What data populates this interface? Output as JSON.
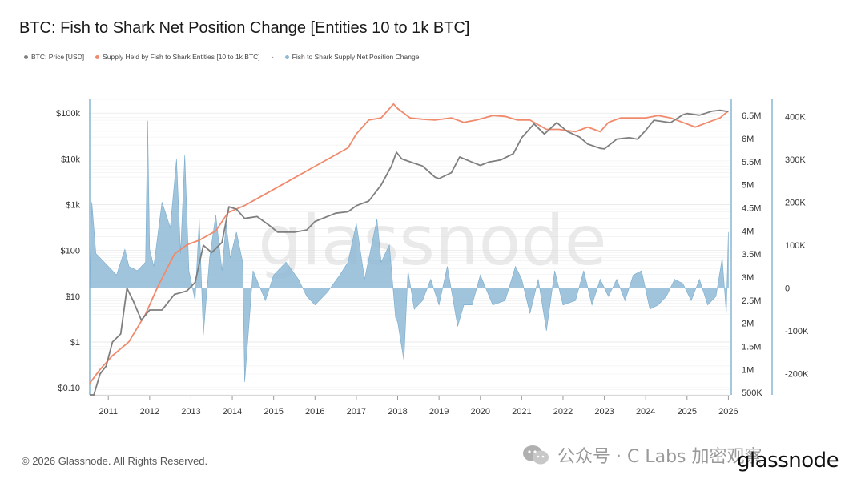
{
  "title": "BTC: Fish to Shark Net Position Change [Entities 10 to 1k BTC]",
  "legend": [
    {
      "label": "BTC: Price [USD]",
      "color": "#7f7f7f",
      "marker": "dot"
    },
    {
      "label": "Supply Held by Fish to Shark Entities [10 to 1k BTC]",
      "color": "#f08a6c",
      "marker": "dot"
    },
    {
      "label": "-",
      "color": "#666666",
      "marker": "none"
    },
    {
      "label": "Fish to Shark Supply Net Position Change",
      "color": "#8fbad6",
      "marker": "dot"
    }
  ],
  "footer": "© 2026 Glassnode. All Rights Reserved.",
  "watermark_text": "公众号 · C Labs 加密观察",
  "logo": "glassnode",
  "chart_data": {
    "type": "line",
    "x_ticks": [
      "2011",
      "2012",
      "2013",
      "2014",
      "2015",
      "2016",
      "2017",
      "2018",
      "2019",
      "2020",
      "2021",
      "2022",
      "2023",
      "2024",
      "2025",
      "2026"
    ],
    "x_range": [
      2010.55,
      2026.05
    ],
    "axes": {
      "left": {
        "scale": "log",
        "range": [
          0.07,
          200000
        ],
        "ticks": [
          {
            "v": 0.1,
            "label": "$0.10"
          },
          {
            "v": 1,
            "label": "$1"
          },
          {
            "v": 10,
            "label": "$10"
          },
          {
            "v": 100,
            "label": "$100"
          },
          {
            "v": 1000,
            "label": "$1k"
          },
          {
            "v": 10000,
            "label": "$10k"
          },
          {
            "v": 100000,
            "label": "$100k"
          }
        ]
      },
      "middle": {
        "scale": "linear",
        "range": [
          450000,
          6850000
        ],
        "ticks": [
          {
            "v": 500000,
            "label": "500K"
          },
          {
            "v": 1000000,
            "label": "1M"
          },
          {
            "v": 1500000,
            "label": "1.5M"
          },
          {
            "v": 2000000,
            "label": "2M"
          },
          {
            "v": 2500000,
            "label": "2.5M"
          },
          {
            "v": 3000000,
            "label": "3M"
          },
          {
            "v": 3500000,
            "label": "3.5M"
          },
          {
            "v": 4000000,
            "label": "4M"
          },
          {
            "v": 4500000,
            "label": "4.5M"
          },
          {
            "v": 5000000,
            "label": "5M"
          },
          {
            "v": 5500000,
            "label": "5.5M"
          },
          {
            "v": 6000000,
            "label": "6M"
          },
          {
            "v": 6500000,
            "label": "6.5M"
          }
        ]
      },
      "right": {
        "scale": "linear",
        "range": [
          -250000,
          440000
        ],
        "ticks": [
          {
            "v": -200000,
            "label": "-200K"
          },
          {
            "v": -100000,
            "label": "-100K"
          },
          {
            "v": 0,
            "label": "0"
          },
          {
            "v": 100000,
            "label": "100K"
          },
          {
            "v": 200000,
            "label": "200K"
          },
          {
            "v": 300000,
            "label": "300K"
          },
          {
            "v": 400000,
            "label": "400K"
          }
        ]
      }
    },
    "series": [
      {
        "name": "BTC: Price [USD]",
        "axis": "left",
        "color": "#7f7f7f",
        "x": [
          2010.55,
          2010.65,
          2010.8,
          2010.95,
          2011.1,
          2011.3,
          2011.45,
          2011.6,
          2011.8,
          2012.0,
          2012.3,
          2012.6,
          2012.9,
          2013.1,
          2013.3,
          2013.5,
          2013.75,
          2013.92,
          2014.1,
          2014.3,
          2014.6,
          2014.9,
          2015.1,
          2015.5,
          2015.8,
          2016.0,
          2016.5,
          2016.8,
          2017.0,
          2017.3,
          2017.6,
          2017.85,
          2017.97,
          2018.1,
          2018.4,
          2018.6,
          2018.9,
          2019.0,
          2019.3,
          2019.5,
          2019.8,
          2020.0,
          2020.2,
          2020.5,
          2020.8,
          2021.0,
          2021.3,
          2021.55,
          2021.85,
          2022.1,
          2022.4,
          2022.6,
          2022.9,
          2023.0,
          2023.3,
          2023.6,
          2023.8,
          2024.0,
          2024.2,
          2024.6,
          2024.9,
          2025.0,
          2025.3,
          2025.6,
          2025.8,
          2026.0
        ],
        "y": [
          0.07,
          0.07,
          0.2,
          0.3,
          1,
          1.5,
          15,
          8,
          3,
          5,
          5,
          11,
          13,
          20,
          130,
          90,
          150,
          900,
          800,
          500,
          550,
          350,
          250,
          250,
          280,
          430,
          650,
          700,
          950,
          1200,
          2700,
          7000,
          14000,
          10000,
          8000,
          7000,
          4000,
          3700,
          5000,
          11000,
          8500,
          7200,
          8500,
          9500,
          13000,
          29000,
          58000,
          35000,
          62000,
          40000,
          30000,
          21000,
          17000,
          16500,
          27000,
          29000,
          27000,
          42000,
          70000,
          62000,
          92000,
          98000,
          90000,
          110000,
          115000,
          108000
        ]
      },
      {
        "name": "Supply Held by Fish to Shark Entities [10 to 1k BTC]",
        "axis": "middle",
        "color": "#f08a6c",
        "x": [
          2010.55,
          2010.8,
          2011.1,
          2011.5,
          2011.9,
          2012.2,
          2012.6,
          2012.9,
          2013.2,
          2013.6,
          2013.9,
          2014.3,
          2014.8,
          2015.3,
          2015.8,
          2016.3,
          2016.8,
          2017.0,
          2017.3,
          2017.6,
          2017.9,
          2018.0,
          2018.3,
          2018.6,
          2018.9,
          2019.3,
          2019.6,
          2019.9,
          2020.3,
          2020.6,
          2020.9,
          2021.2,
          2021.6,
          2021.9,
          2022.3,
          2022.6,
          2022.9,
          2023.1,
          2023.4,
          2023.7,
          2024.0,
          2024.3,
          2024.6,
          2024.9,
          2025.2,
          2025.5,
          2025.8,
          2026.0
        ],
        "y": [
          700000,
          1000000,
          1300000,
          1600000,
          2200000,
          2800000,
          3500000,
          3700000,
          3800000,
          4000000,
          4400000,
          4550000,
          4800000,
          5050000,
          5300000,
          5550000,
          5800000,
          6100000,
          6400000,
          6450000,
          6750000,
          6650000,
          6450000,
          6420000,
          6400000,
          6450000,
          6350000,
          6400000,
          6500000,
          6480000,
          6400000,
          6400000,
          6200000,
          6200000,
          6150000,
          6250000,
          6150000,
          6350000,
          6450000,
          6450000,
          6450000,
          6500000,
          6450000,
          6350000,
          6250000,
          6350000,
          6450000,
          6600000
        ]
      },
      {
        "name": "Fish to Shark Supply Net Position Change",
        "axis": "right",
        "color": "#8fbad6",
        "style": "area",
        "x": [
          2010.55,
          2010.6,
          2010.7,
          2010.9,
          2011.2,
          2011.4,
          2011.5,
          2011.7,
          2011.9,
          2011.95,
          2012.0,
          2012.1,
          2012.3,
          2012.5,
          2012.65,
          2012.75,
          2012.85,
          2012.95,
          2013.1,
          2013.2,
          2013.3,
          2013.45,
          2013.6,
          2013.75,
          2013.85,
          2013.95,
          2014.1,
          2014.25,
          2014.3,
          2014.5,
          2014.8,
          2015.0,
          2015.3,
          2015.6,
          2015.8,
          2016.0,
          2016.3,
          2016.6,
          2016.8,
          2017.0,
          2017.2,
          2017.5,
          2017.6,
          2017.8,
          2017.95,
          2018.0,
          2018.15,
          2018.25,
          2018.4,
          2018.6,
          2018.8,
          2019.0,
          2019.2,
          2019.45,
          2019.6,
          2019.8,
          2020.0,
          2020.3,
          2020.6,
          2020.85,
          2021.0,
          2021.2,
          2021.4,
          2021.6,
          2021.8,
          2022.0,
          2022.3,
          2022.5,
          2022.7,
          2022.9,
          2023.1,
          2023.3,
          2023.5,
          2023.7,
          2023.9,
          2024.1,
          2024.3,
          2024.5,
          2024.7,
          2024.9,
          2025.1,
          2025.3,
          2025.5,
          2025.7,
          2025.85,
          2025.95,
          2026.0
        ],
        "y": [
          0,
          200000,
          80000,
          60000,
          30000,
          90000,
          50000,
          40000,
          60000,
          390000,
          90000,
          50000,
          200000,
          140000,
          300000,
          80000,
          310000,
          40000,
          -30000,
          160000,
          -110000,
          70000,
          170000,
          40000,
          150000,
          70000,
          130000,
          60000,
          -220000,
          40000,
          -30000,
          30000,
          60000,
          20000,
          -20000,
          -40000,
          -10000,
          30000,
          60000,
          150000,
          20000,
          160000,
          60000,
          100000,
          -70000,
          -80000,
          -170000,
          40000,
          -50000,
          -30000,
          20000,
          -40000,
          50000,
          -90000,
          -40000,
          -40000,
          30000,
          -40000,
          -30000,
          50000,
          20000,
          -60000,
          20000,
          -100000,
          40000,
          -40000,
          -30000,
          40000,
          -40000,
          20000,
          -20000,
          20000,
          -30000,
          30000,
          40000,
          -50000,
          -40000,
          -20000,
          20000,
          10000,
          -30000,
          20000,
          -40000,
          -20000,
          70000,
          -60000,
          130000
        ]
      }
    ]
  }
}
